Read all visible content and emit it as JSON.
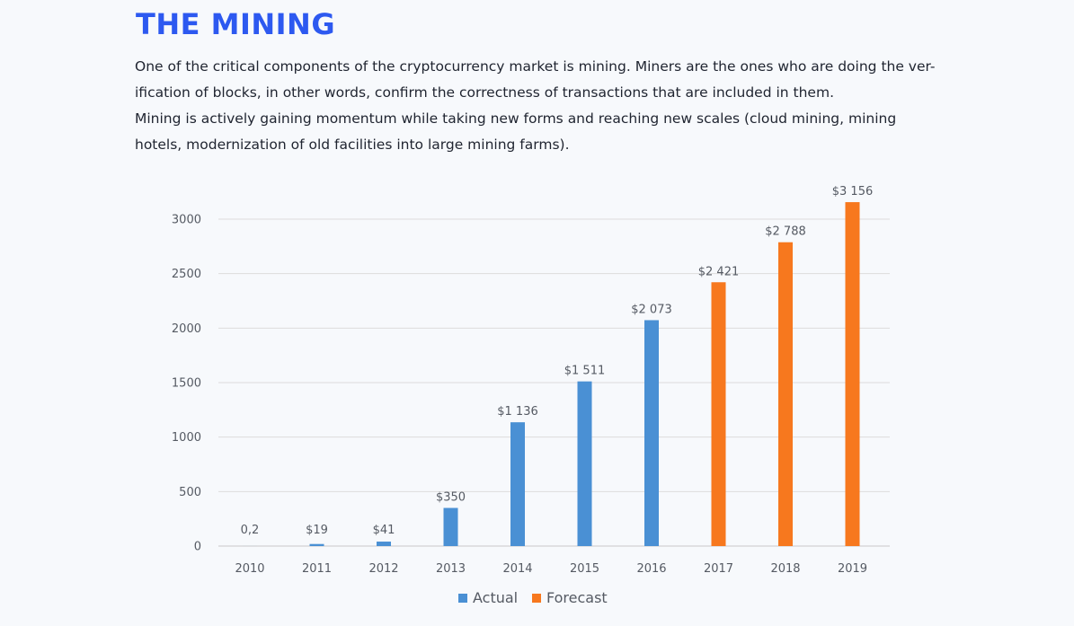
{
  "header": {
    "title": "THE MINING",
    "paragraph_lines": [
      "One of the critical components of the cryptocurrency market is mining. Miners are the ones who are doing the ver-",
      "ification of blocks, in other words, confirm the correctness of transactions that are included in them.",
      "Mining is actively gaining momentum while taking new forms and reaching new scales (cloud mining, mining",
      "hotels, modernization of old facilities into large mining farms)."
    ]
  },
  "colors": {
    "title": "#2d59f0",
    "actual": "#4a90d4",
    "forecast": "#f7781e",
    "grid": "#dcdcdc"
  },
  "chart_data": {
    "type": "bar",
    "categories": [
      "2010",
      "2011",
      "2012",
      "2013",
      "2014",
      "2015",
      "2016",
      "2017",
      "2018",
      "2019"
    ],
    "values": [
      0.2,
      19,
      41,
      350,
      1136,
      1511,
      2073,
      2421,
      2788,
      3156
    ],
    "data_labels": [
      "0,2",
      "$19",
      "$41",
      "$350",
      "$1 136",
      "$1 511",
      "$2 073",
      "$2 421",
      "$2 788",
      "$3 156"
    ],
    "series_by_category": [
      "Actual",
      "Actual",
      "Actual",
      "Actual",
      "Actual",
      "Actual",
      "Actual",
      "Forecast",
      "Forecast",
      "Forecast"
    ],
    "legend": [
      {
        "name": "Actual",
        "color": "#4a90d4"
      },
      {
        "name": "Forecast",
        "color": "#f7781e"
      }
    ],
    "legend_placement": "bottom-center",
    "y_ticks": [
      0,
      500,
      1000,
      1500,
      2000,
      2500,
      3000
    ],
    "ylim": [
      0,
      3000
    ],
    "grid": true,
    "title": "",
    "xlabel": "",
    "ylabel": ""
  }
}
